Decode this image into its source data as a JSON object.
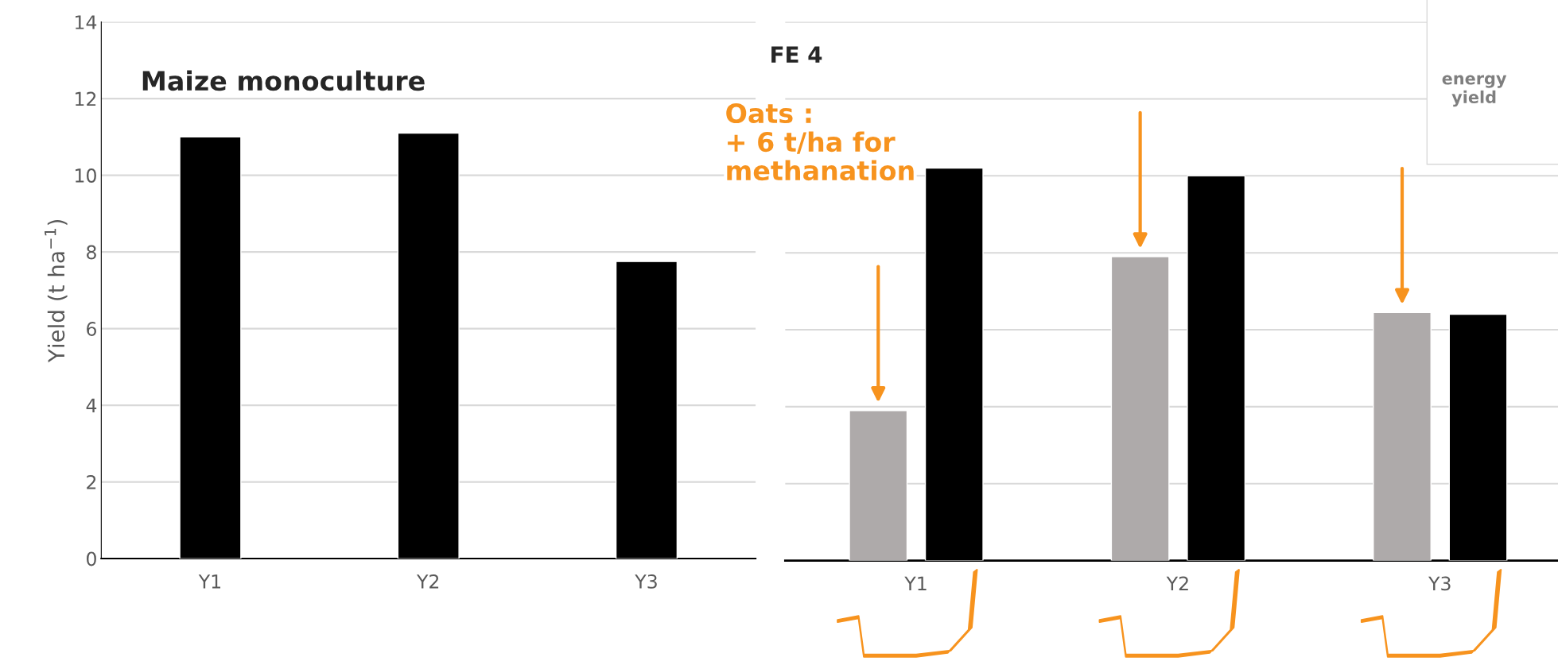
{
  "chart_data": [
    {
      "type": "bar",
      "title": "Maize monoculture",
      "ylabel": "Yield (t ha$^{−1}$)",
      "categories": [
        "Y1",
        "Y2",
        "Y3"
      ],
      "series": [
        {
          "color": "#000000",
          "values": [
            11.0,
            11.1,
            7.75
          ]
        }
      ],
      "ylim": [
        0,
        14
      ],
      "yticks": [
        0,
        2,
        4,
        6,
        8,
        10,
        12,
        14
      ],
      "grid": "y"
    },
    {
      "type": "bar",
      "categories": [
        "Y1",
        "Y2",
        "Y3"
      ],
      "series": [
        {
          "color": "#aeaaaa",
          "values": [
            3.9,
            7.9,
            6.45
          ]
        },
        {
          "color": "#000000",
          "values": [
            10.2,
            10.0,
            6.4
          ]
        }
      ],
      "ylim": [
        0,
        14
      ],
      "yticks": [
        0,
        2,
        4,
        6,
        8,
        10,
        12,
        14
      ],
      "grid": "y",
      "tick_labels": "x",
      "annotations": [
        "FE 4",
        "Oats :\n+ 6 t/ha for\nmethanation",
        "energy\nyield"
      ]
    }
  ]
}
